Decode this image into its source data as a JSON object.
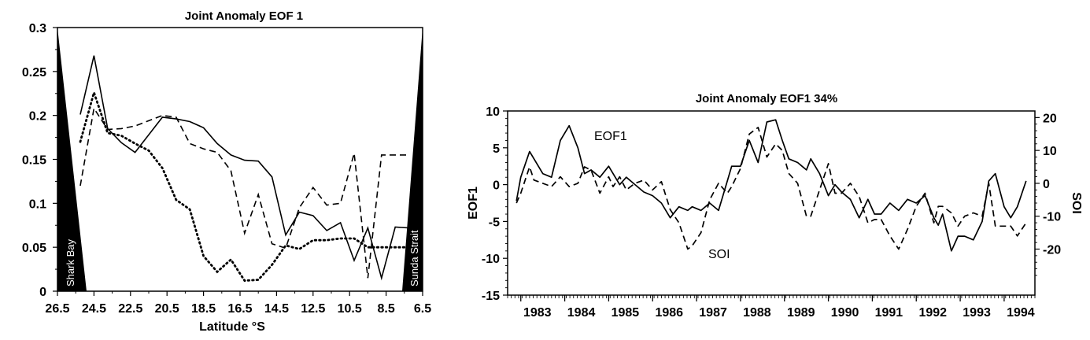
{
  "chart_data": [
    {
      "type": "line",
      "title": "Joint Anomaly EOF 1",
      "xlabel": "Latitude °S",
      "ylabel": "",
      "xlim": [
        26.5,
        6.5
      ],
      "ylim": [
        0,
        0.3
      ],
      "x_ticks": [
        "26.5",
        "24.5",
        "22.5",
        "20.5",
        "18.5",
        "16.5",
        "14.5",
        "12.5",
        "10.5",
        "8.5",
        "6.5"
      ],
      "y_ticks": [
        "0",
        "0.05",
        "0.1",
        "0.15",
        "0.2",
        "0.25",
        "0.3"
      ],
      "annotations": {
        "left": "Shark Bay",
        "right": "Sunda Strait"
      },
      "x": [
        25.25,
        24.5,
        23.75,
        23.0,
        22.25,
        21.5,
        20.75,
        20.0,
        19.25,
        18.5,
        17.75,
        17.0,
        16.25,
        15.5,
        14.75,
        14.0,
        13.25,
        12.5,
        11.75,
        11.0,
        10.25,
        9.5,
        8.75,
        8.0,
        7.25
      ],
      "series": [
        {
          "style": "solid",
          "values": [
            0.201,
            0.268,
            0.185,
            0.169,
            0.158,
            0.178,
            0.198,
            0.196,
            0.193,
            0.186,
            0.168,
            0.155,
            0.149,
            0.148,
            0.13,
            0.064,
            0.09,
            0.086,
            0.069,
            0.078,
            0.035,
            0.072,
            0.015,
            0.073,
            0.072
          ]
        },
        {
          "style": "dashed",
          "values": [
            0.12,
            0.208,
            0.184,
            0.185,
            0.188,
            0.194,
            0.2,
            0.198,
            0.168,
            0.162,
            0.158,
            0.137,
            0.066,
            0.11,
            0.054,
            0.049,
            0.095,
            0.118,
            0.098,
            0.1,
            0.157,
            0.015,
            0.155,
            0.155,
            0.155
          ]
        },
        {
          "style": "dotted",
          "values": [
            0.17,
            0.226,
            0.18,
            0.177,
            0.168,
            0.16,
            0.14,
            0.104,
            0.093,
            0.04,
            0.022,
            0.036,
            0.012,
            0.013,
            0.03,
            0.052,
            0.048,
            0.058,
            0.058,
            0.06,
            0.06,
            0.05,
            0.05,
            0.05,
            0.05
          ]
        }
      ]
    },
    {
      "type": "line",
      "title": "Joint Anomaly EOF1  34%",
      "xlabel": "",
      "ylabel": "EOF1",
      "ylabel_right": "SOI",
      "xlim": [
        1982.7,
        1994.7
      ],
      "ylim": [
        -15,
        10
      ],
      "ylim_right": [
        -34,
        22
      ],
      "x_ticks": [
        "1983",
        "1984",
        "1985",
        "1986",
        "1987",
        "1988",
        "1989",
        "1990",
        "1991",
        "1992",
        "1993",
        "1994"
      ],
      "y_ticks": [
        "10",
        "5",
        "0",
        "-5",
        "-10",
        "-15"
      ],
      "y_ticks_right": [
        "20",
        "10",
        "0",
        "-10",
        "-20"
      ],
      "series": [
        {
          "name": "EOF1",
          "style": "solid",
          "axis": "left",
          "x": [
            1982.9,
            1983.0,
            1983.2,
            1983.3,
            1983.5,
            1983.7,
            1983.9,
            1984.1,
            1984.3,
            1984.45,
            1984.6,
            1984.8,
            1985.0,
            1985.1,
            1985.25,
            1985.4,
            1985.6,
            1985.8,
            1986.0,
            1986.2,
            1986.4,
            1986.6,
            1986.8,
            1986.9,
            1987.1,
            1987.3,
            1987.5,
            1987.7,
            1987.8,
            1988.0,
            1988.2,
            1988.4,
            1988.6,
            1988.8,
            1988.95,
            1989.1,
            1989.3,
            1989.5,
            1989.6,
            1989.8,
            1990.0,
            1990.15,
            1990.3,
            1990.5,
            1990.7,
            1990.9,
            1991.05,
            1991.2,
            1991.4,
            1991.6,
            1991.8,
            1992.0,
            1992.2,
            1992.4,
            1992.5,
            1992.6,
            1992.8,
            1992.95,
            1993.1,
            1993.3,
            1993.5,
            1993.65,
            1993.8,
            1994.0,
            1994.15,
            1994.3,
            1994.5
          ],
          "values": [
            -2.2,
            1.0,
            4.5,
            3.5,
            1.5,
            1.0,
            6.0,
            8.0,
            5.0,
            1.5,
            2.0,
            1.0,
            2.5,
            1.5,
            0.0,
            1.0,
            0.0,
            -1.0,
            -1.5,
            -2.5,
            -4.5,
            -3.0,
            -3.5,
            -3.0,
            -3.5,
            -2.5,
            -3.5,
            0.5,
            2.5,
            2.5,
            6.0,
            3.0,
            8.5,
            8.8,
            6.0,
            3.5,
            3.0,
            2.0,
            3.5,
            1.5,
            -1.5,
            0.0,
            -1.0,
            -2.0,
            -4.5,
            -2.0,
            -4.0,
            -4.0,
            -2.5,
            -3.5,
            -2.0,
            -2.5,
            -1.5,
            -4.5,
            -5.5,
            -4.0,
            -9.0,
            -7.0,
            -7.0,
            -7.5,
            -5.0,
            0.5,
            1.5,
            -3.0,
            -4.5,
            -3.0,
            0.5
          ]
        },
        {
          "name": "SOI",
          "style": "dashed",
          "axis": "right",
          "x": [
            1982.9,
            1983.0,
            1983.2,
            1983.3,
            1983.5,
            1983.7,
            1983.9,
            1984.1,
            1984.3,
            1984.45,
            1984.6,
            1984.8,
            1985.0,
            1985.1,
            1985.25,
            1985.4,
            1985.6,
            1985.8,
            1986.0,
            1986.2,
            1986.4,
            1986.6,
            1986.8,
            1986.9,
            1987.1,
            1987.3,
            1987.5,
            1987.7,
            1987.8,
            1988.0,
            1988.2,
            1988.4,
            1988.6,
            1988.8,
            1988.95,
            1989.1,
            1989.3,
            1989.5,
            1989.6,
            1989.8,
            1990.0,
            1990.15,
            1990.3,
            1990.5,
            1990.7,
            1990.9,
            1991.05,
            1991.2,
            1991.4,
            1991.6,
            1991.8,
            1992.0,
            1992.2,
            1992.4,
            1992.5,
            1992.6,
            1992.8,
            1992.95,
            1993.1,
            1993.3,
            1993.5,
            1993.65,
            1993.8,
            1994.0,
            1994.15,
            1994.3,
            1994.5
          ],
          "values": [
            -6.0,
            -3.0,
            5.0,
            1.0,
            0.0,
            -1.0,
            2.0,
            -1.0,
            0.0,
            5.0,
            4.0,
            -3.0,
            2.0,
            -1.0,
            2.0,
            -2.0,
            0.0,
            1.0,
            -2.0,
            0.5,
            -8.0,
            -12.0,
            -20.0,
            -19.0,
            -15.0,
            -5.0,
            0.0,
            -3.0,
            -1.0,
            4.5,
            15.0,
            17.0,
            8.0,
            12.0,
            10.0,
            3.0,
            0.0,
            -10.0,
            -10.0,
            -2.0,
            6.0,
            -3.0,
            -3.0,
            0.0,
            -4.0,
            -12.0,
            -11.0,
            -11.0,
            -16.0,
            -20.0,
            -14.0,
            -7.0,
            -3.0,
            -12.0,
            -7.0,
            -7.0,
            -9.0,
            -13.0,
            -10.0,
            -9.0,
            -10.0,
            0.0,
            -13.0,
            -13.0,
            -13.0,
            -16.0,
            -12.0
          ]
        }
      ],
      "annotations": {
        "eof1": "EOF1",
        "soi": "SOI"
      }
    }
  ]
}
